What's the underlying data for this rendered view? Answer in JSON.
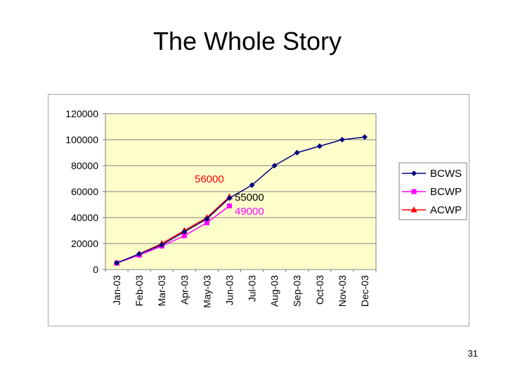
{
  "slide": {
    "title": "The Whole Story",
    "page_number": "31"
  },
  "chart_data": {
    "type": "line",
    "categories": [
      "Jan-03",
      "Feb-03",
      "Mar-03",
      "Apr-03",
      "May-03",
      "Jun-03",
      "Jul-03",
      "Aug-03",
      "Sep-03",
      "Oct-03",
      "Nov-03",
      "Dec-03"
    ],
    "ylim": [
      0,
      120000
    ],
    "yticks": [
      "0",
      "20000",
      "40000",
      "60000",
      "80000",
      "100000",
      "120000"
    ],
    "ytick_values": [
      0,
      20000,
      40000,
      60000,
      80000,
      100000,
      120000
    ],
    "grid": true,
    "plot_background": "#ffffcc",
    "legend_position": "right",
    "series": [
      {
        "name": "BCWS",
        "color": "#000080",
        "marker": "diamond",
        "values": [
          5000,
          12000,
          19000,
          29000,
          39000,
          55000,
          65000,
          80000,
          90000,
          95000,
          100000,
          102000
        ]
      },
      {
        "name": "BCWP",
        "color": "#ff00ff",
        "marker": "square",
        "values": [
          5000,
          11000,
          18000,
          26000,
          36000,
          49000,
          null,
          null,
          null,
          null,
          null,
          null
        ]
      },
      {
        "name": "ACWP",
        "color": "#ff0000",
        "marker": "triangle",
        "values": [
          5000,
          12000,
          20000,
          30000,
          40000,
          56000,
          null,
          null,
          null,
          null,
          null,
          null
        ]
      }
    ],
    "annotations": [
      {
        "text": "56000",
        "color": "#ff0000"
      },
      {
        "text": "55000",
        "color": "#000000"
      },
      {
        "text": "49000",
        "color": "#ff00ff"
      }
    ]
  }
}
